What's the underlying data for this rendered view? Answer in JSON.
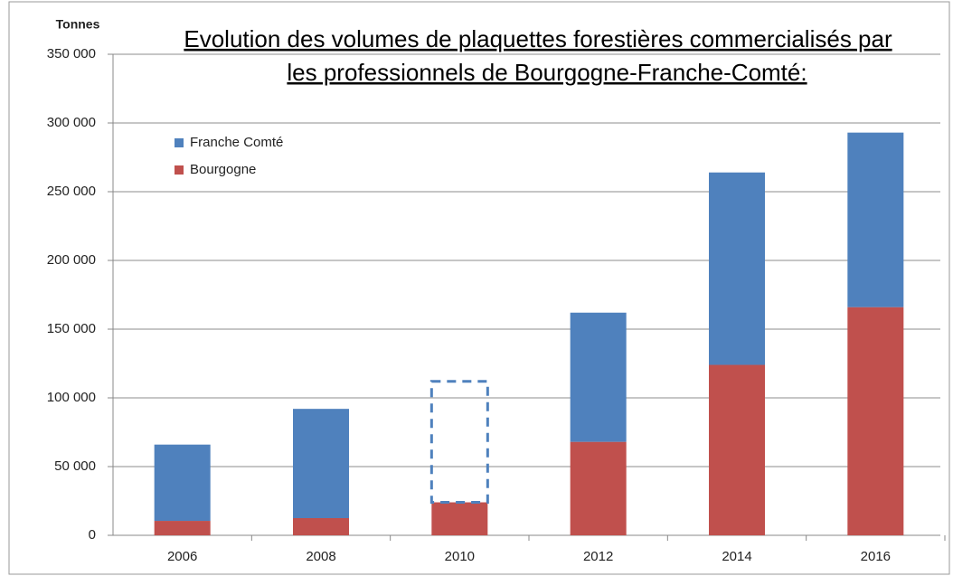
{
  "chart_data": {
    "type": "stacked_bar",
    "title": [
      "Evolution des volumes de plaquettes forestières commercialisés par",
      "les professionnels de Bourgogne-Franche-Comté:"
    ],
    "y_label": "Tonnes",
    "categories": [
      "2006",
      "2008",
      "2010",
      "2012",
      "2014",
      "2016"
    ],
    "series": [
      {
        "name": "Bourgogne",
        "color": "#c0504d",
        "values": [
          10500,
          12500,
          24000,
          68000,
          124000,
          166000
        ]
      },
      {
        "name": "Franche Comté",
        "color": "#4f81bd",
        "values": [
          55500,
          79500,
          88000,
          94000,
          140000,
          127000
        ],
        "dashed_indices": [
          2
        ]
      }
    ],
    "ylim": [
      0,
      350000
    ],
    "yticks": [
      0,
      {
        "value": 50000,
        "label": "50 000"
      },
      {
        "value": 100000,
        "label": "100 000"
      },
      {
        "value": 150000,
        "label": "150 000"
      },
      {
        "value": 200000,
        "label": "200 000"
      },
      {
        "value": 250000,
        "label": "250 000"
      },
      {
        "value": 300000,
        "label": "300 000"
      },
      {
        "value": 350000,
        "label": "350 000"
      }
    ],
    "grid": true,
    "legend": "upper-left"
  }
}
